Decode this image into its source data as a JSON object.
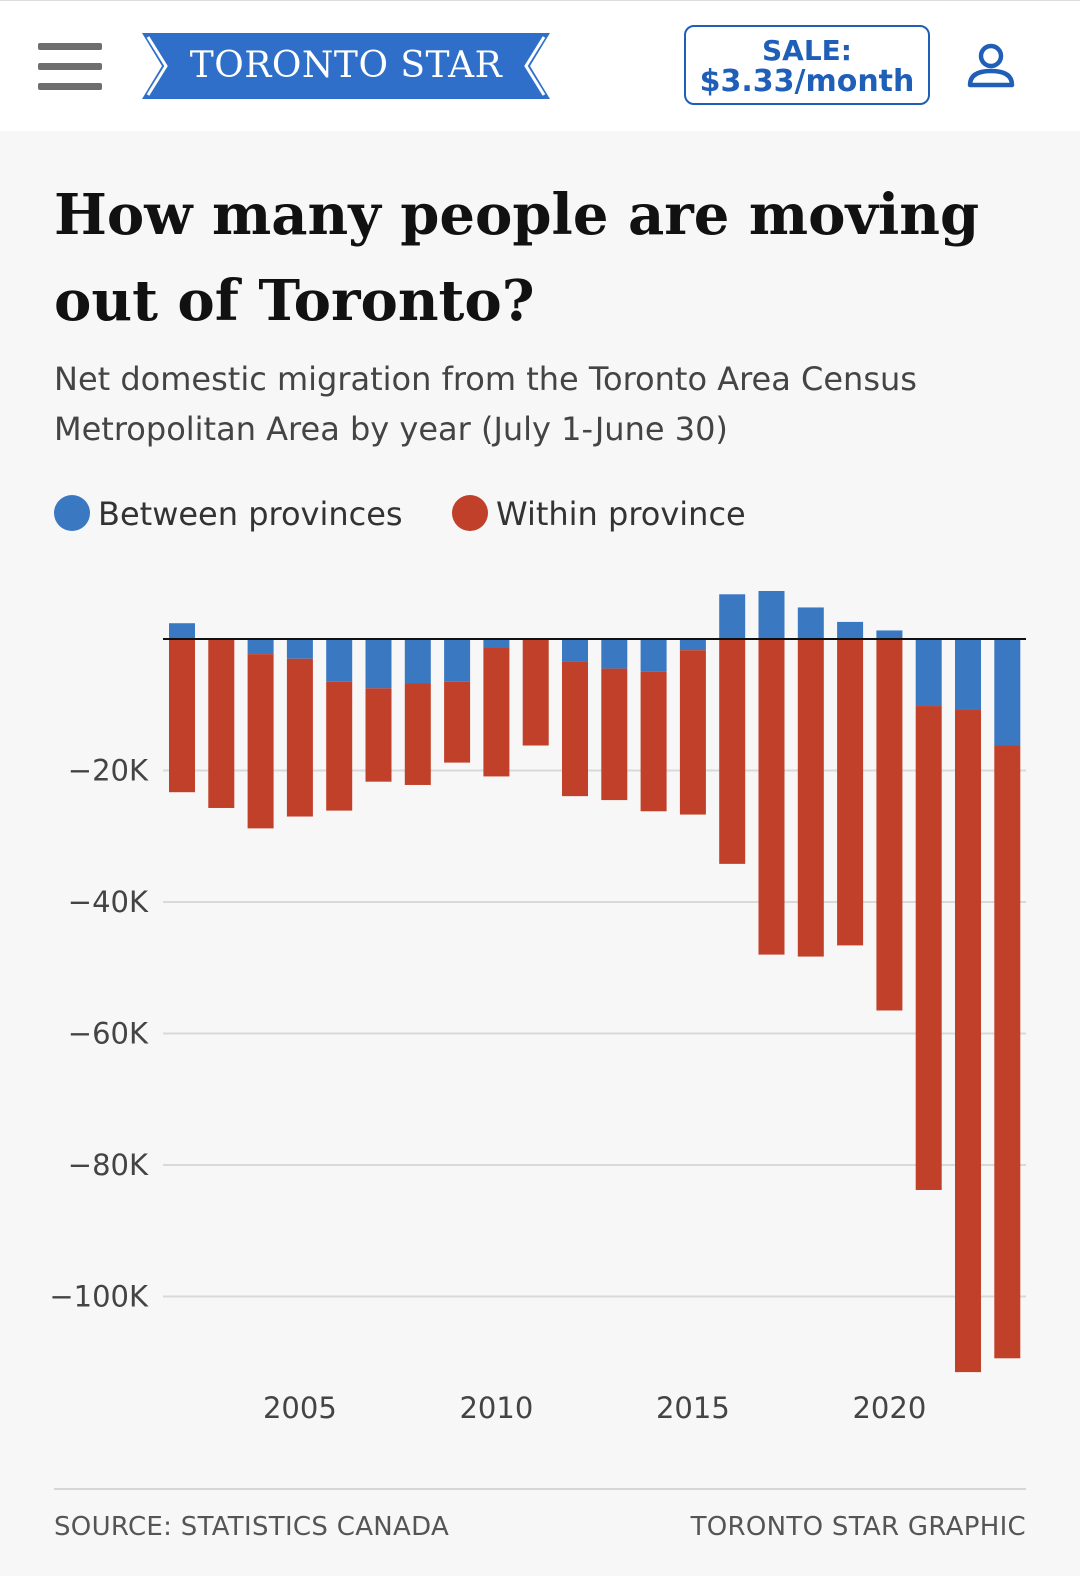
{
  "header": {
    "menu_icon": "hamburger-menu-icon",
    "logo_text": "TORONTO STAR",
    "sale_line1": "SALE:",
    "sale_line2": "$3.33/month",
    "account_icon": "user-account-icon",
    "brand_color": "#2f6fc9"
  },
  "article": {
    "title": "How many people are moving out of Toronto?",
    "subtitle": "Net domestic migration from the Toronto Area Census Metropolitan Area by year (July 1-June 30)"
  },
  "legend": [
    {
      "label": "Between provinces",
      "color": "#3b78c2"
    },
    {
      "label": "Within province",
      "color": "#c1402a"
    }
  ],
  "chart_data": {
    "type": "bar",
    "stacked": true,
    "title": "How many people are moving out of Toronto?",
    "xlabel": "",
    "ylabel": "",
    "x": [
      2002,
      2003,
      2004,
      2005,
      2006,
      2007,
      2008,
      2009,
      2010,
      2011,
      2012,
      2013,
      2014,
      2015,
      2016,
      2017,
      2018,
      2019,
      2020,
      2021,
      2022,
      2023
    ],
    "x_ticks": [
      2005,
      2010,
      2015,
      2020
    ],
    "x_tick_labels": [
      "2005",
      "2010",
      "2015",
      "2020"
    ],
    "series": [
      {
        "name": "Between provinces",
        "color": "#3b78c2",
        "values": [
          2400,
          0,
          -2300,
          -3000,
          -6500,
          -7500,
          -6700,
          -6500,
          -1300,
          0,
          -3400,
          -4500,
          -5000,
          -1700,
          6800,
          7300,
          4800,
          2600,
          1300,
          -10200,
          -10800,
          -16200
        ]
      },
      {
        "name": "Within province",
        "color": "#c1402a",
        "values": [
          -23300,
          -25700,
          -26500,
          -24000,
          -19600,
          -14200,
          -15500,
          -12300,
          -19600,
          -16200,
          -20500,
          -20000,
          -21200,
          -25000,
          -34200,
          -48000,
          -48300,
          -46600,
          -56500,
          -73600,
          -100700,
          -93200
        ]
      }
    ],
    "y_ticks": [
      -20000,
      -40000,
      -60000,
      -80000,
      -100000
    ],
    "y_tick_labels": [
      "−20K",
      "−40K",
      "−60K",
      "−80K",
      "−100K"
    ],
    "ylim": [
      -112000,
      8000
    ],
    "grid": true
  },
  "footer": {
    "source": "SOURCE: STATISTICS CANADA",
    "credit": "TORONTO STAR GRAPHIC"
  }
}
